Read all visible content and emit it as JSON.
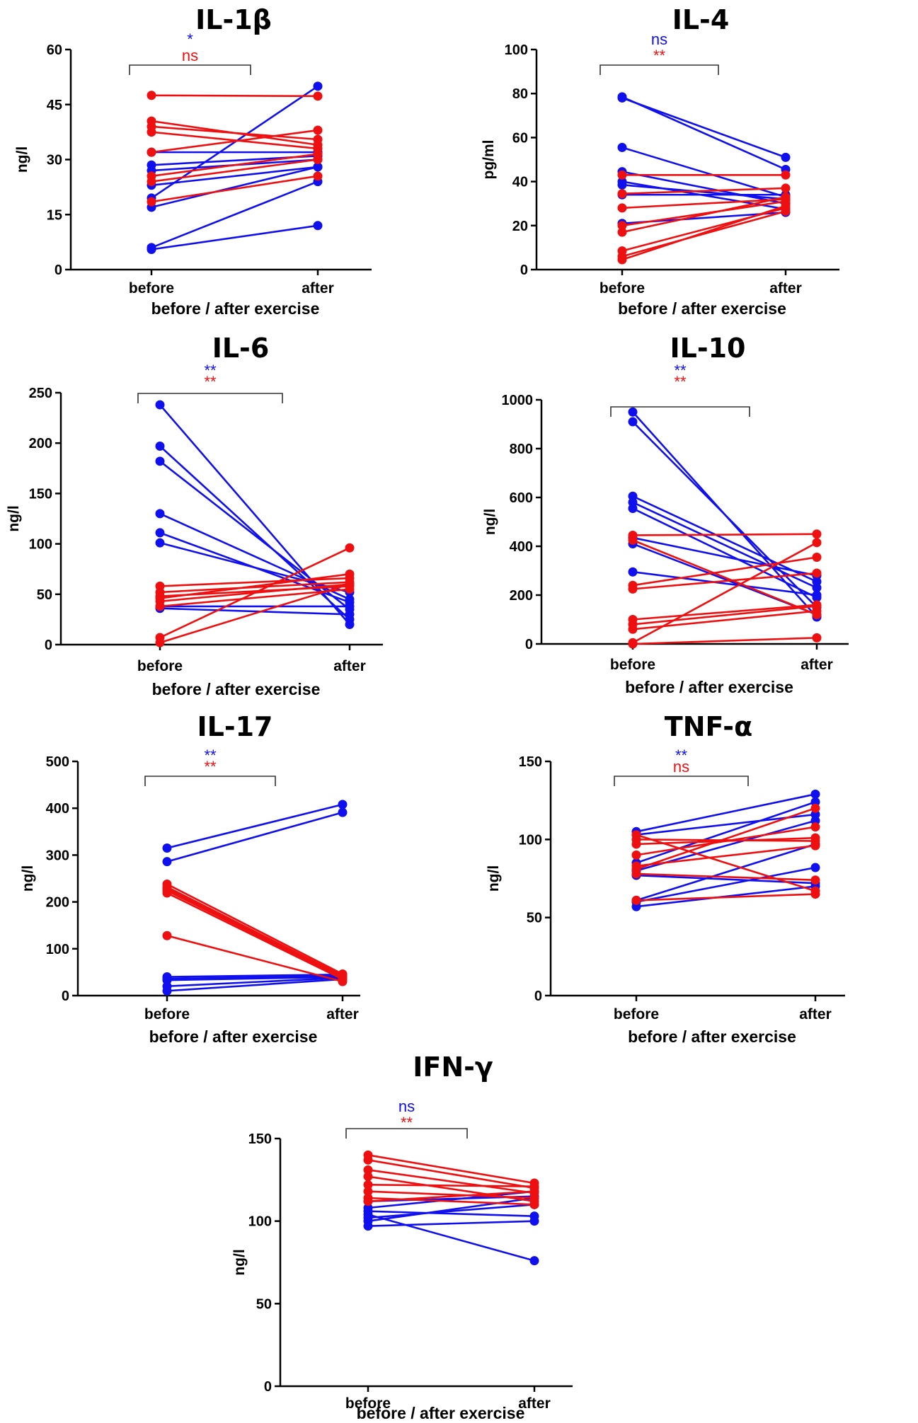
{
  "colors": {
    "blue": "#1010ee",
    "red": "#ee1010",
    "axis": "#000000",
    "bracket": "#333333"
  },
  "chart_data": [
    {
      "type": "line",
      "title": "IL-1β",
      "xlabel": "before / after exercise",
      "ylabel": "ng/l",
      "categories": [
        "before",
        "after"
      ],
      "ylim": [
        0,
        60
      ],
      "yticks": [
        0,
        15,
        30,
        45,
        60
      ],
      "significance": {
        "blue": "*",
        "red": "ns"
      },
      "series": [
        {
          "color": "blue",
          "pairs": [
            [
              5.5,
              12
            ],
            [
              6,
              24
            ],
            [
              17,
              28
            ],
            [
              19.5,
              50
            ],
            [
              23,
              28
            ],
            [
              27,
              30
            ],
            [
              28.5,
              31
            ],
            [
              32,
              32
            ]
          ]
        },
        {
          "color": "red",
          "pairs": [
            [
              47.5,
              47.3
            ],
            [
              40.5,
              34
            ],
            [
              39,
              35.5
            ],
            [
              37.5,
              33
            ],
            [
              32,
              38
            ],
            [
              25.5,
              31.5
            ],
            [
              24,
              30
            ],
            [
              18.5,
              25.5
            ]
          ]
        }
      ]
    },
    {
      "type": "line",
      "title": "IL-4",
      "xlabel": "before / after exercise",
      "ylabel": "pg/ml",
      "categories": [
        "before",
        "after"
      ],
      "ylim": [
        0,
        100
      ],
      "yticks": [
        0,
        20,
        40,
        60,
        80,
        100
      ],
      "significance": {
        "blue": "ns",
        "red": "**"
      },
      "series": [
        {
          "color": "blue",
          "pairs": [
            [
              78.5,
              45.5
            ],
            [
              78,
              51
            ],
            [
              55.5,
              33
            ],
            [
              44.5,
              30
            ],
            [
              40,
              27.5
            ],
            [
              38.5,
              32
            ],
            [
              34,
              34
            ],
            [
              21,
              26
            ]
          ]
        },
        {
          "color": "red",
          "pairs": [
            [
              43,
              43
            ],
            [
              34.5,
              37
            ],
            [
              28,
              32
            ],
            [
              20,
              31
            ],
            [
              17,
              33
            ],
            [
              8.5,
              28
            ],
            [
              6,
              26.5
            ],
            [
              4.5,
              29
            ]
          ]
        }
      ]
    },
    {
      "type": "line",
      "title": "IL-6",
      "xlabel": "before / after exercise",
      "ylabel": "ng/l",
      "categories": [
        "before",
        "after"
      ],
      "ylim": [
        0,
        250
      ],
      "yticks": [
        0,
        50,
        100,
        150,
        200,
        250
      ],
      "significance": {
        "blue": "**",
        "red": "**"
      },
      "series": [
        {
          "color": "blue",
          "pairs": [
            [
              238,
              20
            ],
            [
              197,
              25
            ],
            [
              182,
              35
            ],
            [
              130,
              45
            ],
            [
              111,
              42
            ],
            [
              101,
              52
            ],
            [
              38,
              38
            ],
            [
              36,
              30
            ]
          ]
        },
        {
          "color": "red",
          "pairs": [
            [
              58,
              66
            ],
            [
              52,
              62
            ],
            [
              48,
              58
            ],
            [
              46,
              70
            ],
            [
              43,
              60
            ],
            [
              38,
              55
            ],
            [
              7,
              96
            ],
            [
              2,
              60
            ]
          ]
        }
      ]
    },
    {
      "type": "line",
      "title": "IL-10",
      "xlabel": "before / after exercise",
      "ylabel": "ng/l",
      "categories": [
        "before",
        "after"
      ],
      "ylim": [
        0,
        1000
      ],
      "yticks": [
        0,
        200,
        400,
        600,
        800,
        1000
      ],
      "significance": {
        "blue": "**",
        "red": "**"
      },
      "series": [
        {
          "color": "blue",
          "pairs": [
            [
              950,
              110
            ],
            [
              910,
              150
            ],
            [
              605,
              255
            ],
            [
              580,
              230
            ],
            [
              555,
              190
            ],
            [
              435,
              280
            ],
            [
              410,
              120
            ],
            [
              295,
              200
            ]
          ]
        },
        {
          "color": "red",
          "pairs": [
            [
              445,
              450
            ],
            [
              425,
              120
            ],
            [
              240,
              355
            ],
            [
              225,
              290
            ],
            [
              100,
              160
            ],
            [
              80,
              155
            ],
            [
              60,
              135
            ],
            [
              5,
              415
            ],
            [
              0,
              25
            ]
          ]
        }
      ]
    },
    {
      "type": "line",
      "title": "IL-17",
      "xlabel": "before / after exercise",
      "ylabel": "ng/l",
      "categories": [
        "before",
        "after"
      ],
      "ylim": [
        0,
        500
      ],
      "yticks": [
        0,
        100,
        200,
        300,
        400,
        500
      ],
      "significance": {
        "blue": "**",
        "red": "**"
      },
      "series": [
        {
          "color": "blue",
          "pairs": [
            [
              315,
              408
            ],
            [
              286,
              391
            ],
            [
              40,
              45
            ],
            [
              36,
              42
            ],
            [
              33,
              40
            ],
            [
              20,
              38
            ],
            [
              10,
              35
            ]
          ]
        },
        {
          "color": "red",
          "pairs": [
            [
              238,
              46
            ],
            [
              232,
              42
            ],
            [
              228,
              40
            ],
            [
              224,
              38
            ],
            [
              219,
              35
            ],
            [
              128,
              30
            ]
          ]
        }
      ]
    },
    {
      "type": "line",
      "title": "TNF-α",
      "xlabel": "before / after exercise",
      "ylabel": "ng/l",
      "categories": [
        "before",
        "after"
      ],
      "ylim": [
        0,
        150
      ],
      "yticks": [
        0,
        50,
        100,
        150
      ],
      "significance": {
        "blue": "**",
        "red": "ns"
      },
      "series": [
        {
          "color": "blue",
          "pairs": [
            [
              105,
              129
            ],
            [
              103,
              116
            ],
            [
              85,
              124
            ],
            [
              80,
              112
            ],
            [
              77,
              72
            ],
            [
              61,
              97
            ],
            [
              60,
              82
            ],
            [
              57,
              70
            ]
          ]
        },
        {
          "color": "red",
          "pairs": [
            [
              103,
              67
            ],
            [
              100,
              99
            ],
            [
              97,
              101
            ],
            [
              90,
              108
            ],
            [
              83,
              96
            ],
            [
              81,
              120
            ],
            [
              78,
              74
            ],
            [
              61,
              65
            ]
          ]
        }
      ]
    },
    {
      "type": "line",
      "title": "IFN-γ",
      "xlabel": "before / after exercise",
      "ylabel": "ng/l",
      "categories": [
        "before",
        "after"
      ],
      "ylim": [
        0,
        150
      ],
      "yticks": [
        0,
        50,
        100,
        150
      ],
      "significance": {
        "blue": "ns",
        "red": "**"
      },
      "series": [
        {
          "color": "blue",
          "pairs": [
            [
              112,
              115
            ],
            [
              108,
              118
            ],
            [
              106,
              103
            ],
            [
              104,
              76
            ],
            [
              102,
              110
            ],
            [
              100,
              114
            ],
            [
              97,
              100
            ]
          ]
        },
        {
          "color": "red",
          "pairs": [
            [
              140,
              123
            ],
            [
              137,
              120
            ],
            [
              131,
              117
            ],
            [
              127,
              112
            ],
            [
              122,
              121
            ],
            [
              118,
              114
            ],
            [
              114,
              110
            ],
            [
              112,
              118
            ]
          ]
        }
      ]
    }
  ]
}
